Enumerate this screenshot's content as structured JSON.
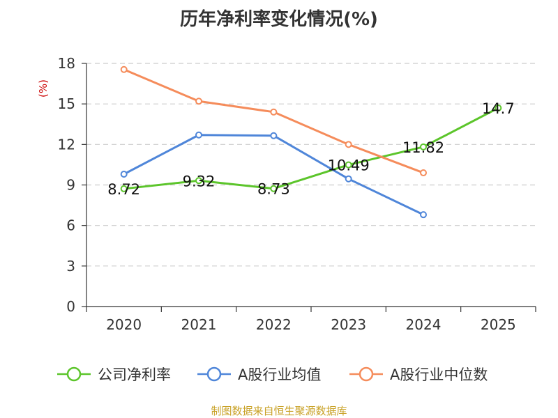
{
  "chart_data": {
    "type": "line",
    "title": "历年净利率变化情况(%)",
    "ylabel": "(%)",
    "xlabel": "",
    "categories": [
      "2020",
      "2021",
      "2022",
      "2023",
      "2024",
      "2025"
    ],
    "ylim": [
      0,
      18
    ],
    "yticks": [
      0,
      3,
      6,
      9,
      12,
      15,
      18
    ],
    "grid": true,
    "legend_position": "bottom",
    "series": [
      {
        "name": "公司净利率",
        "color": "#5cc52b",
        "values": [
          8.72,
          9.32,
          8.73,
          10.49,
          11.82,
          14.7
        ],
        "labels": [
          "8.72",
          "9.32",
          "8.73",
          "10.49",
          "11.82",
          "14.7"
        ]
      },
      {
        "name": "A股行业均值",
        "color": "#4f86d9",
        "values": [
          9.8,
          12.7,
          12.65,
          9.45,
          6.8,
          null
        ]
      },
      {
        "name": "A股行业中位数",
        "color": "#f58c5b",
        "values": [
          17.55,
          15.2,
          14.4,
          12.0,
          9.9,
          null
        ]
      }
    ]
  },
  "source": {
    "text": "制图数据来自恒生聚源数据库",
    "color": "#c9a227"
  },
  "colors": {
    "axis": "#333333",
    "grid": "#cccccc",
    "ylabel": "#cc0000"
  }
}
